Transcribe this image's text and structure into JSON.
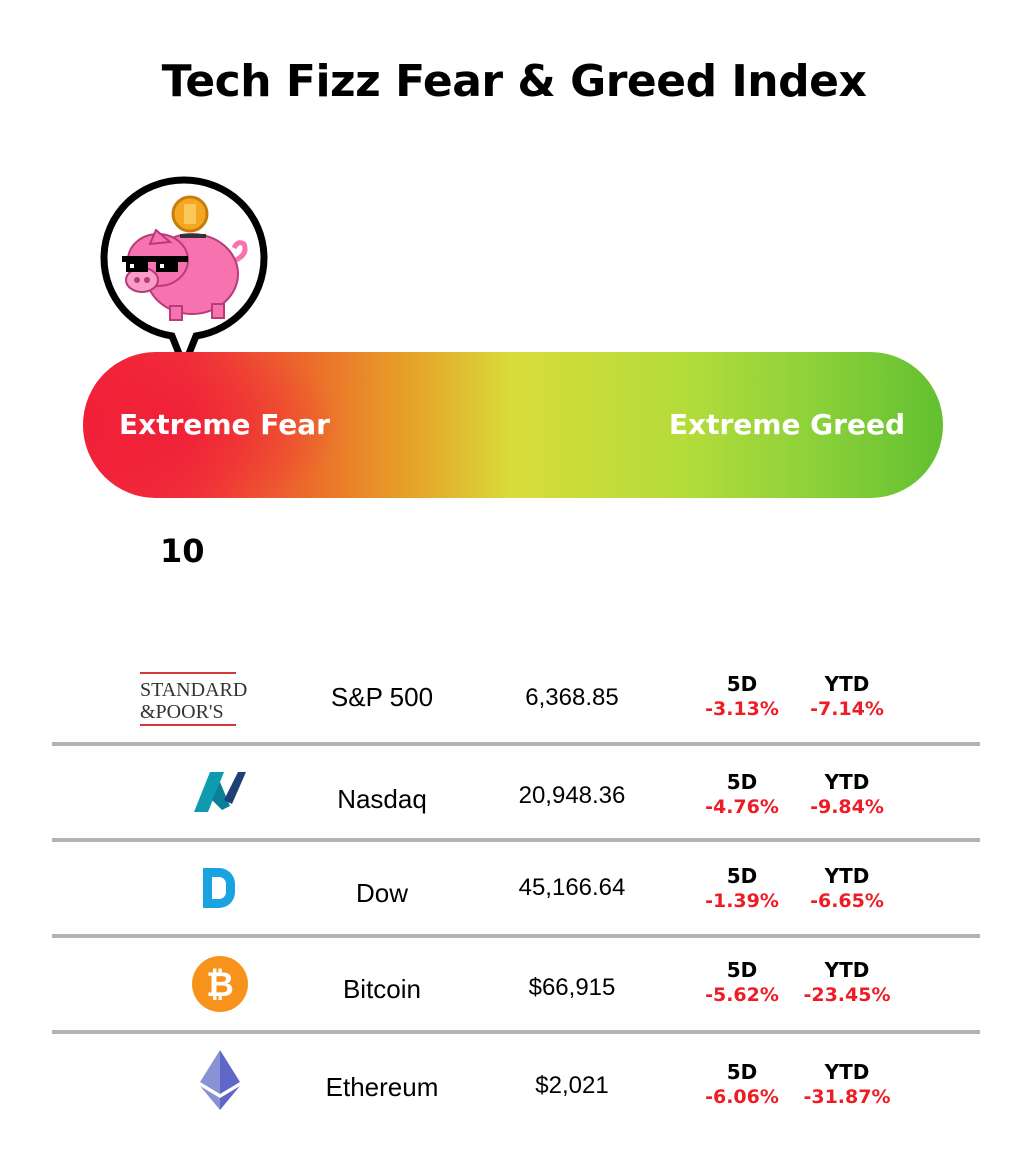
{
  "title": "Tech Fizz Fear & Greed Index",
  "gauge": {
    "left_label": "Extreme Fear",
    "right_label": "Extreme Greed",
    "score": "10",
    "gradient_colors": [
      "#f2223a",
      "#e6a228",
      "#d8dc3a",
      "#62c030"
    ]
  },
  "markets": [
    {
      "logo": "standard-poors-logo",
      "logo_text_1": "STANDARD",
      "logo_text_2": "&POOR'S",
      "name": "S&P 500",
      "price": "6,368.85",
      "d5_label": "5D",
      "d5": "-3.13%",
      "ytd_label": "YTD",
      "ytd": "-7.14%"
    },
    {
      "logo": "nasdaq-logo",
      "name": "Nasdaq",
      "price": "20,948.36",
      "d5_label": "5D",
      "d5": "-4.76%",
      "ytd_label": "YTD",
      "ytd": "-9.84%"
    },
    {
      "logo": "dow-logo",
      "name": "Dow",
      "price": "45,166.64",
      "d5_label": "5D",
      "d5": "-1.39%",
      "ytd_label": "YTD",
      "ytd": "-6.65%"
    },
    {
      "logo": "bitcoin-logo",
      "name": "Bitcoin",
      "price": "$66,915",
      "d5_label": "5D",
      "d5": "-5.62%",
      "ytd_label": "YTD",
      "ytd": "-23.45%"
    },
    {
      "logo": "ethereum-logo",
      "name": "Ethereum",
      "price": "$2,021",
      "d5_label": "5D",
      "d5": "-6.06%",
      "ytd_label": "YTD",
      "ytd": "-31.87%"
    }
  ],
  "colors": {
    "negative": "#ee1c24",
    "divider": "#b3b3b3"
  }
}
